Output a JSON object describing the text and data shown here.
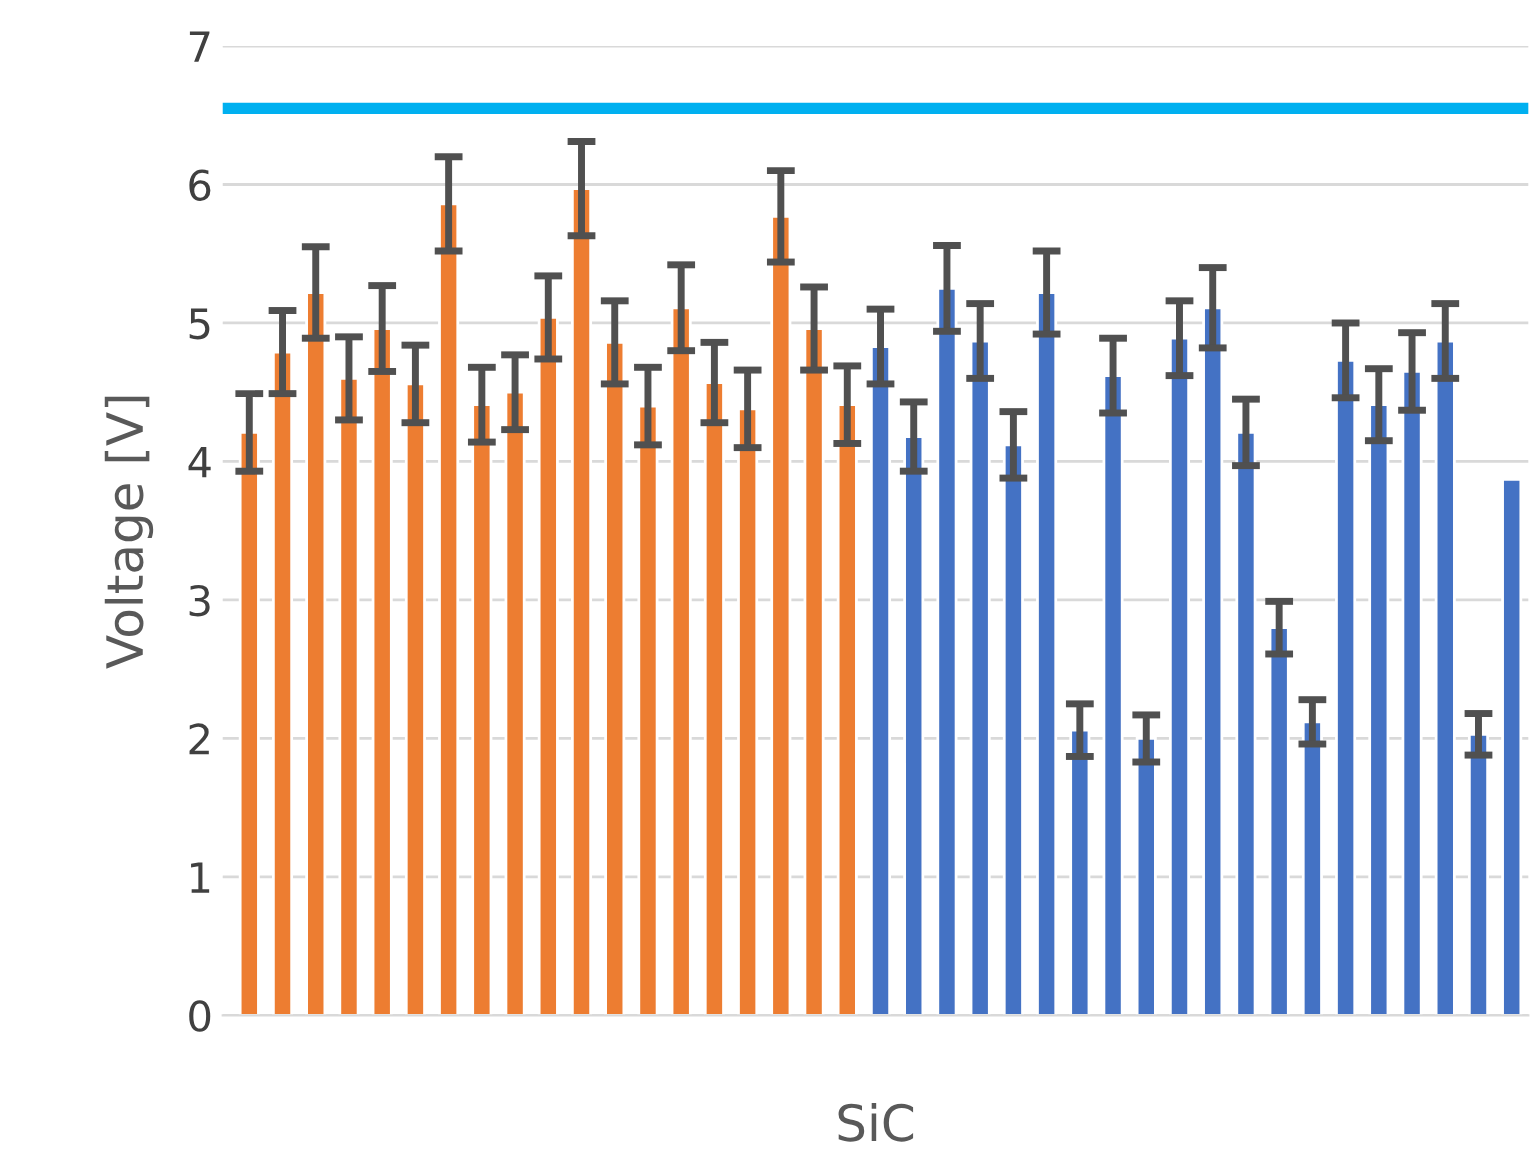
{
  "chart_data": {
    "type": "bar",
    "xlabel": "SiC",
    "ylabel": "Voltage [V]",
    "categories": [
      null,
      null,
      null,
      null,
      null,
      null,
      null,
      null,
      null,
      null,
      null,
      null,
      null,
      null,
      null,
      null,
      null,
      null,
      null,
      null,
      null,
      null,
      null,
      null,
      null,
      null,
      null,
      null,
      null,
      null,
      null,
      null,
      null,
      null,
      null,
      null,
      null,
      null,
      null
    ],
    "values": [
      4.21,
      4.79,
      5.22,
      4.6,
      4.96,
      4.56,
      5.86,
      4.41,
      4.5,
      5.04,
      5.97,
      4.86,
      4.4,
      5.11,
      4.57,
      4.38,
      5.77,
      4.96,
      4.41,
      4.83,
      4.18,
      5.25,
      4.87,
      4.12,
      5.22,
      2.06,
      4.62,
      2.0,
      4.89,
      5.11,
      4.21,
      2.8,
      2.12,
      4.73,
      4.41,
      4.65,
      4.87,
      2.03,
      3.87
    ],
    "colors": [
      "#ed7d31",
      "#ed7d31",
      "#ed7d31",
      "#ed7d31",
      "#ed7d31",
      "#ed7d31",
      "#ed7d31",
      "#ed7d31",
      "#ed7d31",
      "#ed7d31",
      "#ed7d31",
      "#ed7d31",
      "#ed7d31",
      "#ed7d31",
      "#ed7d31",
      "#ed7d31",
      "#ed7d31",
      "#ed7d31",
      "#ed7d31",
      "#4472c4",
      "#4472c4",
      "#4472c4",
      "#4472c4",
      "#4472c4",
      "#4472c4",
      "#4472c4",
      "#4472c4",
      "#4472c4",
      "#4472c4",
      "#4472c4",
      "#4472c4",
      "#4472c4",
      "#4472c4",
      "#4472c4",
      "#4472c4",
      "#4472c4",
      "#4472c4",
      "#4472c4",
      "#4472c4"
    ],
    "errors": [
      0.28,
      0.3,
      0.33,
      0.3,
      0.31,
      0.28,
      0.34,
      0.27,
      0.27,
      0.3,
      0.34,
      0.3,
      0.28,
      0.31,
      0.29,
      0.28,
      0.33,
      0.3,
      0.28,
      0.27,
      0.25,
      0.31,
      0.27,
      0.24,
      0.3,
      0.19,
      0.27,
      0.17,
      0.27,
      0.29,
      0.24,
      0.19,
      0.16,
      0.27,
      0.26,
      0.28,
      0.27,
      0.15,
      null
    ],
    "ylim": [
      0,
      7
    ],
    "yticks": [
      0,
      1,
      2,
      3,
      4,
      5,
      6,
      7
    ],
    "grid": "y",
    "ref_lines": [
      {
        "axis": "y",
        "value": 6.55,
        "color": "#00b0f0"
      }
    ]
  }
}
